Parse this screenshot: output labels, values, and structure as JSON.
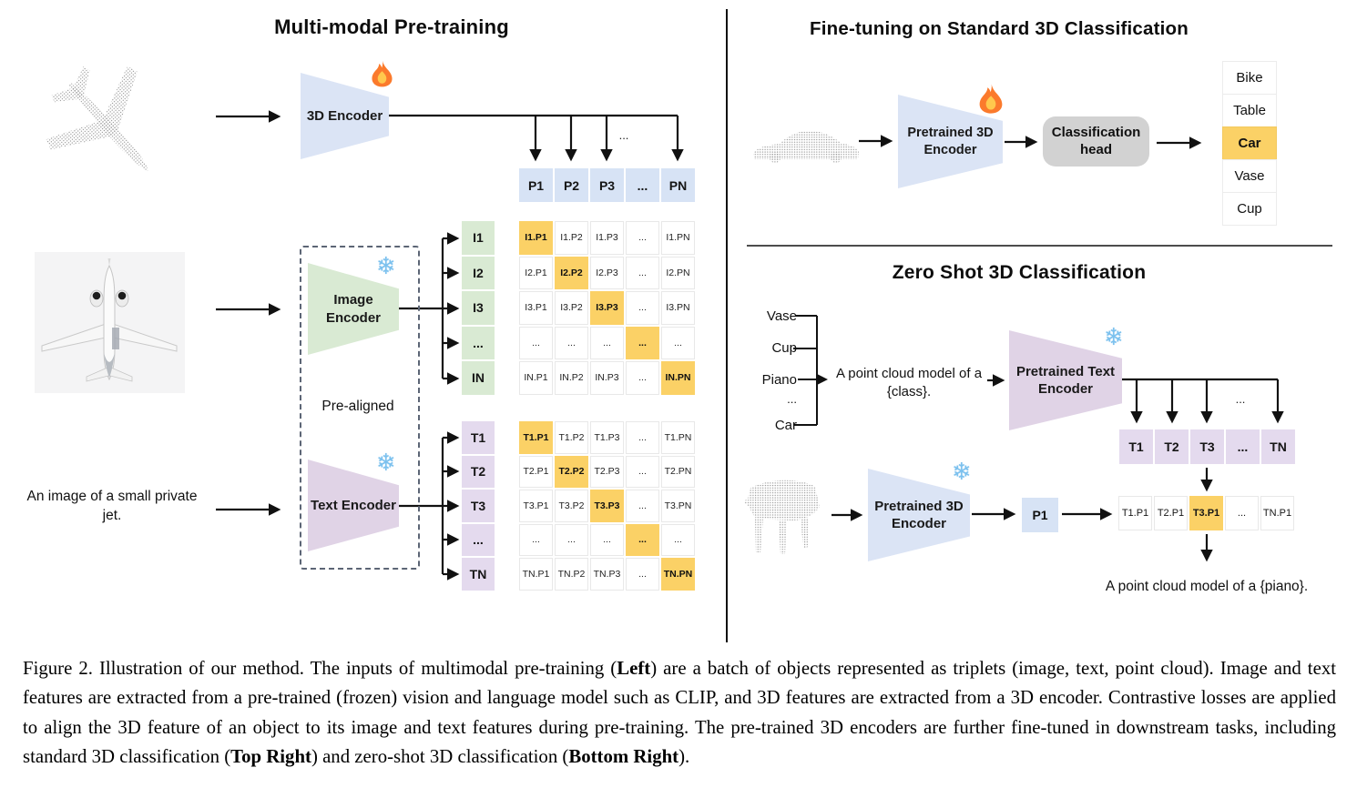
{
  "figure": {
    "left": {
      "title": "Multi-modal Pre-training",
      "encoder_3d_label": "3D Encoder",
      "image_encoder_label": "Image Encoder",
      "text_encoder_label": "Text Encoder",
      "pre_aligned_label": "Pre-aligned",
      "text_input": "An image of a small private jet.",
      "branch_ellipsis": "...",
      "p_row": [
        "P1",
        "P2",
        "P3",
        "...",
        "PN"
      ],
      "i_labels": [
        "I1",
        "I2",
        "I3",
        "...",
        "IN"
      ],
      "t_labels": [
        "T1",
        "T2",
        "T3",
        "...",
        "TN"
      ],
      "i_matrix": [
        [
          "I1.P1",
          "I1.P2",
          "I1.P3",
          "...",
          "I1.PN"
        ],
        [
          "I2.P1",
          "I2.P2",
          "I2.P3",
          "...",
          "I2.PN"
        ],
        [
          "I3.P1",
          "I3.P2",
          "I3.P3",
          "...",
          "I3.PN"
        ],
        [
          "...",
          "...",
          "...",
          "...",
          "..."
        ],
        [
          "IN.P1",
          "IN.P2",
          "IN.P3",
          "...",
          "IN.PN"
        ]
      ],
      "t_matrix": [
        [
          "T1.P1",
          "T1.P2",
          "T1.P3",
          "...",
          "T1.PN"
        ],
        [
          "T2.P1",
          "T2.P2",
          "T2.P3",
          "...",
          "T2.PN"
        ],
        [
          "T3.P1",
          "T3.P2",
          "T3.P3",
          "...",
          "T3.PN"
        ],
        [
          "...",
          "...",
          "...",
          "...",
          "..."
        ],
        [
          "TN.P1",
          "TN.P2",
          "TN.P3",
          "...",
          "TN.PN"
        ]
      ]
    },
    "top_right": {
      "title": "Fine-tuning on Standard 3D Classification",
      "encoder_label": "Pretrained 3D Encoder",
      "head_label": "Classification head",
      "classes": [
        "Bike",
        "Table",
        "Car",
        "Vase",
        "Cup"
      ],
      "highlighted_class": "Car"
    },
    "bottom_right": {
      "title": "Zero Shot 3D Classification",
      "prompt_classes": [
        "Vase",
        "Cup",
        "Piano",
        "...",
        "Car"
      ],
      "prompt": "A point cloud model of a {class}.",
      "text_encoder_label": "Pretrained Text Encoder",
      "encoder_3d_label": "Pretrained 3D Encoder",
      "p_cell": "P1",
      "branch_ellipsis": "...",
      "t_row": [
        "T1",
        "T2",
        "T3",
        "...",
        "TN"
      ],
      "result_row": [
        "T1.P1",
        "T2.P1",
        "T3.P1",
        "...",
        "TN.P1"
      ],
      "highlighted_result": "T3.P1",
      "output_text": "A point cloud model of a {piano}."
    }
  },
  "icons": {
    "trainable_icon": "fire-icon",
    "frozen_icon": "snowflake-icon",
    "snowflake_glyph": "❄"
  },
  "colors": {
    "blue": "#d7e3f5",
    "green": "#d9ead3",
    "purple_shape": "#e0d3e6",
    "purple_cell": "#e4daee",
    "highlight_orange": "#fbd166",
    "head_gray": "#d2d2d2"
  },
  "caption": {
    "segments": [
      {
        "t": "Figure 2. Illustration of our method. The inputs of multimodal pre-training (",
        "b": false
      },
      {
        "t": "Left",
        "b": true
      },
      {
        "t": ") are a batch of objects represented as triplets (image, text, point cloud). Image and text features are extracted from a pre-trained (frozen) vision and language model such as CLIP, and 3D features are extracted from a 3D encoder. Contrastive losses are applied to align the 3D feature of an object to its image and text features during pre-training. The pre-trained 3D encoders are further fine-tuned in downstream tasks, including standard 3D classification (",
        "b": false
      },
      {
        "t": "Top Right",
        "b": true
      },
      {
        "t": ") and zero-shot 3D classification (",
        "b": false
      },
      {
        "t": "Bottom Right",
        "b": true
      },
      {
        "t": ").",
        "b": false
      }
    ]
  }
}
